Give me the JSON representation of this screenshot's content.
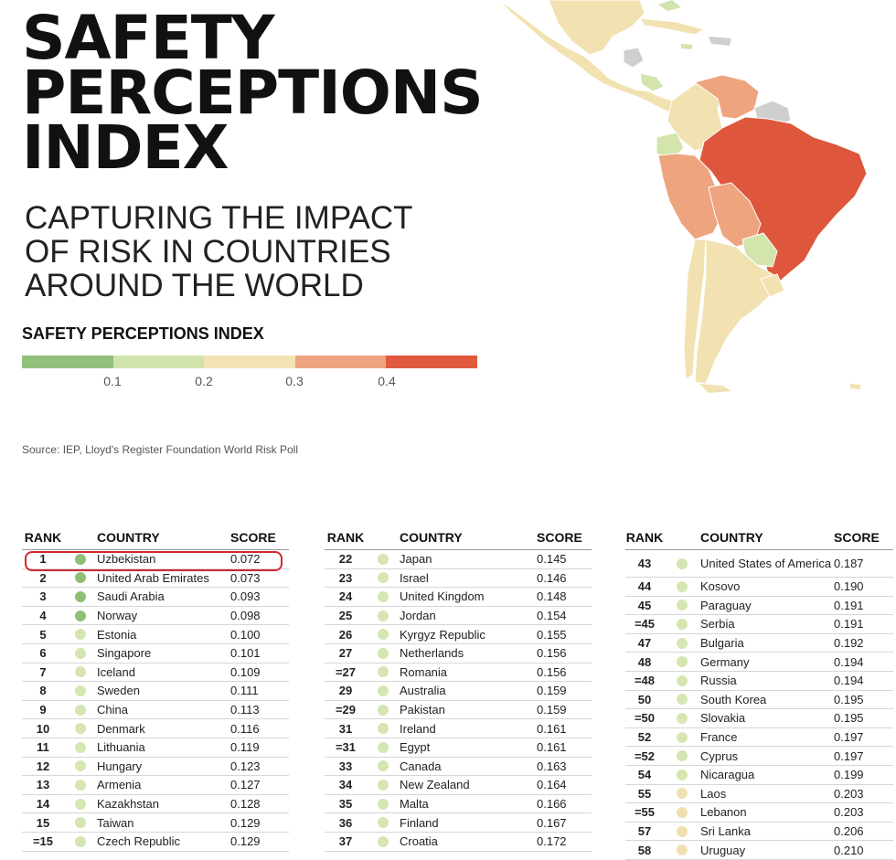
{
  "header": {
    "title_lines": [
      "SAFETY",
      "PERCEPTIONS",
      "INDEX"
    ],
    "subtitle_lines": [
      "CAPTURING THE IMPACT",
      "OF RISK IN COUNTRIES",
      "AROUND THE WORLD"
    ]
  },
  "legend": {
    "title": "SAFETY PERCEPTIONS INDEX",
    "colors": [
      "#93c17b",
      "#d1e3ad",
      "#f3e4b3",
      "#eea47e",
      "#e05a3f"
    ],
    "ticks": [
      "0.1",
      "0.2",
      "0.3",
      "0.4"
    ]
  },
  "map": {
    "colors": {
      "light": "#f2e2b2",
      "pale_green": "#d3e4ad",
      "orange": "#eea47e",
      "red": "#de573c",
      "grey": "#cfcfcf"
    }
  },
  "source": "Source: IEP, Lloyd's Register Foundation World Risk Poll",
  "table": {
    "headers": {
      "rank": "RANK",
      "country": "COUNTRY",
      "score": "SCORE"
    },
    "dot_colors": {
      "green": "#8fbf74",
      "pale_green": "#d5e6b1",
      "light": "#f0e0b0"
    },
    "columns": [
      [
        {
          "rank": "1",
          "country": "Uzbekistan",
          "score": "0.072",
          "dot": "green"
        },
        {
          "rank": "2",
          "country": "United Arab Emirates",
          "score": "0.073",
          "dot": "green"
        },
        {
          "rank": "3",
          "country": "Saudi Arabia",
          "score": "0.093",
          "dot": "green"
        },
        {
          "rank": "4",
          "country": "Norway",
          "score": "0.098",
          "dot": "green"
        },
        {
          "rank": "5",
          "country": "Estonia",
          "score": "0.100",
          "dot": "pale_green"
        },
        {
          "rank": "6",
          "country": "Singapore",
          "score": "0.101",
          "dot": "pale_green"
        },
        {
          "rank": "7",
          "country": "Iceland",
          "score": "0.109",
          "dot": "pale_green"
        },
        {
          "rank": "8",
          "country": "Sweden",
          "score": "0.111",
          "dot": "pale_green"
        },
        {
          "rank": "9",
          "country": "China",
          "score": "0.113",
          "dot": "pale_green"
        },
        {
          "rank": "10",
          "country": "Denmark",
          "score": "0.116",
          "dot": "pale_green"
        },
        {
          "rank": "11",
          "country": "Lithuania",
          "score": "0.119",
          "dot": "pale_green"
        },
        {
          "rank": "12",
          "country": "Hungary",
          "score": "0.123",
          "dot": "pale_green"
        },
        {
          "rank": "13",
          "country": "Armenia",
          "score": "0.127",
          "dot": "pale_green"
        },
        {
          "rank": "14",
          "country": "Kazakhstan",
          "score": "0.128",
          "dot": "pale_green"
        },
        {
          "rank": "15",
          "country": "Taiwan",
          "score": "0.129",
          "dot": "pale_green"
        },
        {
          "rank": "=15",
          "country": "Czech Republic",
          "score": "0.129",
          "dot": "pale_green"
        }
      ],
      [
        {
          "rank": "22",
          "country": "Japan",
          "score": "0.145",
          "dot": "pale_green"
        },
        {
          "rank": "23",
          "country": "Israel",
          "score": "0.146",
          "dot": "pale_green"
        },
        {
          "rank": "24",
          "country": "United Kingdom",
          "score": "0.148",
          "dot": "pale_green"
        },
        {
          "rank": "25",
          "country": "Jordan",
          "score": "0.154",
          "dot": "pale_green"
        },
        {
          "rank": "26",
          "country": "Kyrgyz Republic",
          "score": "0.155",
          "dot": "pale_green"
        },
        {
          "rank": "27",
          "country": "Netherlands",
          "score": "0.156",
          "dot": "pale_green"
        },
        {
          "rank": "=27",
          "country": "Romania",
          "score": "0.156",
          "dot": "pale_green"
        },
        {
          "rank": "29",
          "country": "Australia",
          "score": "0.159",
          "dot": "pale_green"
        },
        {
          "rank": "=29",
          "country": "Pakistan",
          "score": "0.159",
          "dot": "pale_green"
        },
        {
          "rank": "31",
          "country": "Ireland",
          "score": "0.161",
          "dot": "pale_green"
        },
        {
          "rank": "=31",
          "country": "Egypt",
          "score": "0.161",
          "dot": "pale_green"
        },
        {
          "rank": "33",
          "country": "Canada",
          "score": "0.163",
          "dot": "pale_green"
        },
        {
          "rank": "34",
          "country": "New Zealand",
          "score": "0.164",
          "dot": "pale_green"
        },
        {
          "rank": "35",
          "country": "Malta",
          "score": "0.166",
          "dot": "pale_green"
        },
        {
          "rank": "36",
          "country": "Finland",
          "score": "0.167",
          "dot": "pale_green"
        },
        {
          "rank": "37",
          "country": "Croatia",
          "score": "0.172",
          "dot": "pale_green"
        }
      ],
      [
        {
          "rank": "43",
          "country": "United States of America",
          "score": "0.187",
          "dot": "pale_green"
        },
        {
          "rank": "44",
          "country": "Kosovo",
          "score": "0.190",
          "dot": "pale_green"
        },
        {
          "rank": "45",
          "country": "Paraguay",
          "score": "0.191",
          "dot": "pale_green"
        },
        {
          "rank": "=45",
          "country": "Serbia",
          "score": "0.191",
          "dot": "pale_green"
        },
        {
          "rank": "47",
          "country": "Bulgaria",
          "score": "0.192",
          "dot": "pale_green"
        },
        {
          "rank": "48",
          "country": "Germany",
          "score": "0.194",
          "dot": "pale_green"
        },
        {
          "rank": "=48",
          "country": "Russia",
          "score": "0.194",
          "dot": "pale_green"
        },
        {
          "rank": "50",
          "country": "South Korea",
          "score": "0.195",
          "dot": "pale_green"
        },
        {
          "rank": "=50",
          "country": "Slovakia",
          "score": "0.195",
          "dot": "pale_green"
        },
        {
          "rank": "52",
          "country": "France",
          "score": "0.197",
          "dot": "pale_green"
        },
        {
          "rank": "=52",
          "country": "Cyprus",
          "score": "0.197",
          "dot": "pale_green"
        },
        {
          "rank": "54",
          "country": "Nicaragua",
          "score": "0.199",
          "dot": "pale_green"
        },
        {
          "rank": "55",
          "country": "Laos",
          "score": "0.203",
          "dot": "light"
        },
        {
          "rank": "=55",
          "country": "Lebanon",
          "score": "0.203",
          "dot": "light"
        },
        {
          "rank": "57",
          "country": "Sri Lanka",
          "score": "0.206",
          "dot": "light"
        },
        {
          "rank": "58",
          "country": "Uruguay",
          "score": "0.210",
          "dot": "light"
        }
      ]
    ]
  }
}
